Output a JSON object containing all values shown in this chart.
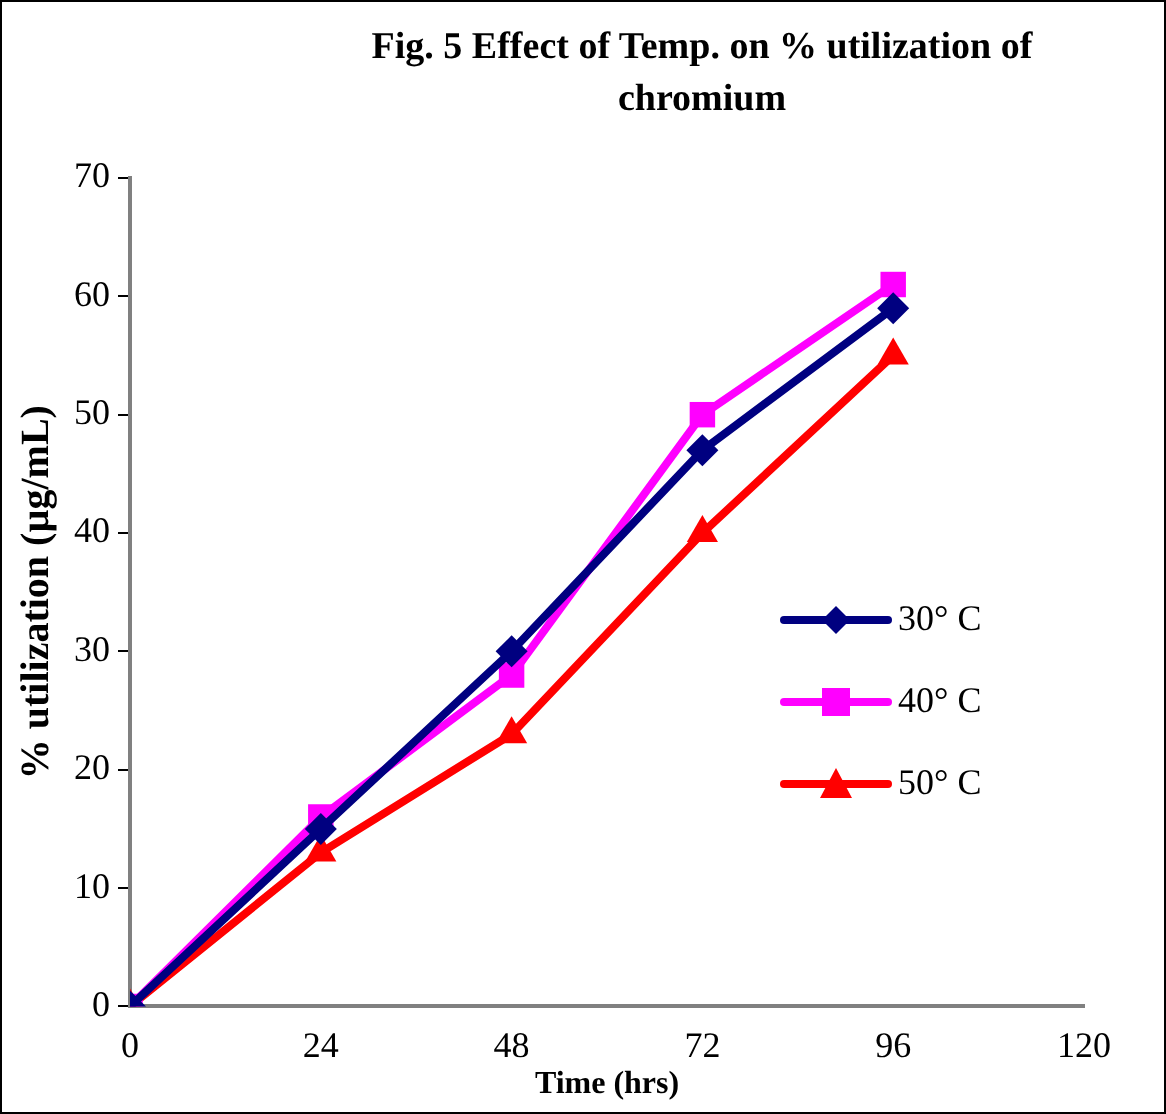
{
  "chart_data": {
    "type": "line",
    "title": "Fig. 5 Effect of Temp. on % utilization of chromium",
    "xlabel": "Time (hrs)",
    "ylabel": "% utilization (µg/mL)",
    "x": [
      0,
      24,
      48,
      72,
      96
    ],
    "xlim": [
      0,
      120
    ],
    "xticks": [
      0,
      24,
      48,
      72,
      96,
      120
    ],
    "ylim": [
      0,
      70
    ],
    "yticks": [
      0,
      10,
      20,
      30,
      40,
      50,
      60,
      70
    ],
    "grid": false,
    "legend": "right",
    "series": [
      {
        "name": "30° C",
        "color": "#000080",
        "marker": "diamond",
        "values": [
          0,
          15,
          30,
          47,
          59
        ]
      },
      {
        "name": "40° C",
        "color": "#ff00ff",
        "marker": "square",
        "values": [
          0,
          16,
          28,
          50,
          61
        ]
      },
      {
        "name": "50° C",
        "color": "#ff0000",
        "marker": "triangle",
        "values": [
          0,
          13,
          23,
          40,
          55
        ]
      }
    ]
  }
}
